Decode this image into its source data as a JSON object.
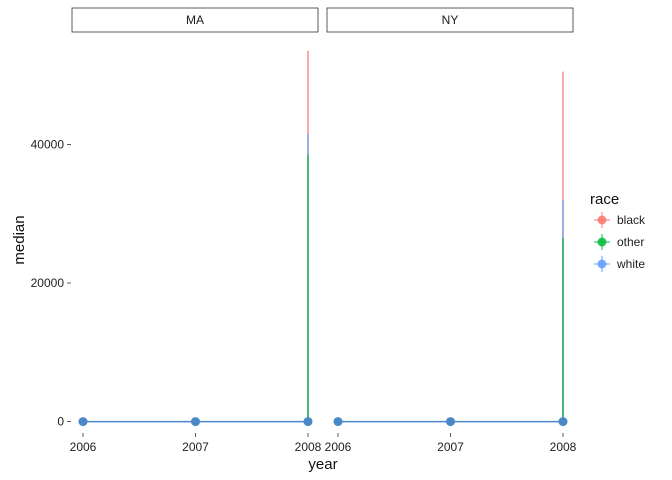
{
  "chart_data": {
    "type": "line",
    "xlabel": "year",
    "ylabel": "median",
    "x_ticks": [
      "2006",
      "2007",
      "2008"
    ],
    "y_ticks": [
      0,
      20000,
      40000
    ],
    "y_tick_labels": [
      "0",
      "20000",
      "40000"
    ],
    "ylim": [
      -1500,
      55500
    ],
    "xlim": [
      2006,
      2008
    ],
    "legend": {
      "title": "race",
      "position": "right",
      "entries": [
        {
          "label": "black",
          "color": "#F8766D"
        },
        {
          "label": "other",
          "color": "#00BA38"
        },
        {
          "label": "white",
          "color": "#619CFF"
        }
      ]
    },
    "point_color": "#4A88C8",
    "panels": [
      {
        "strip": "MA",
        "points": [
          {
            "x": 2006,
            "y": 0
          },
          {
            "x": 2007,
            "y": 0
          },
          {
            "x": 2008,
            "y": 0
          }
        ],
        "error_bars": [
          {
            "race": "black",
            "x": 2008,
            "ymin": 0,
            "ymax": 53500
          },
          {
            "race": "white",
            "x": 2008,
            "ymin": 0,
            "ymax": 41500
          },
          {
            "race": "other",
            "x": 2008,
            "ymin": 0,
            "ymax": 38500
          }
        ]
      },
      {
        "strip": "NY",
        "points": [
          {
            "x": 2006,
            "y": 0
          },
          {
            "x": 2007,
            "y": 0
          },
          {
            "x": 2008,
            "y": 0
          }
        ],
        "error_bars": [
          {
            "race": "black",
            "x": 2008,
            "ymin": 0,
            "ymax": 50500
          },
          {
            "race": "white",
            "x": 2008,
            "ymin": 0,
            "ymax": 32000
          },
          {
            "race": "other",
            "x": 2008,
            "ymin": 0,
            "ymax": 26500
          }
        ]
      }
    ]
  }
}
